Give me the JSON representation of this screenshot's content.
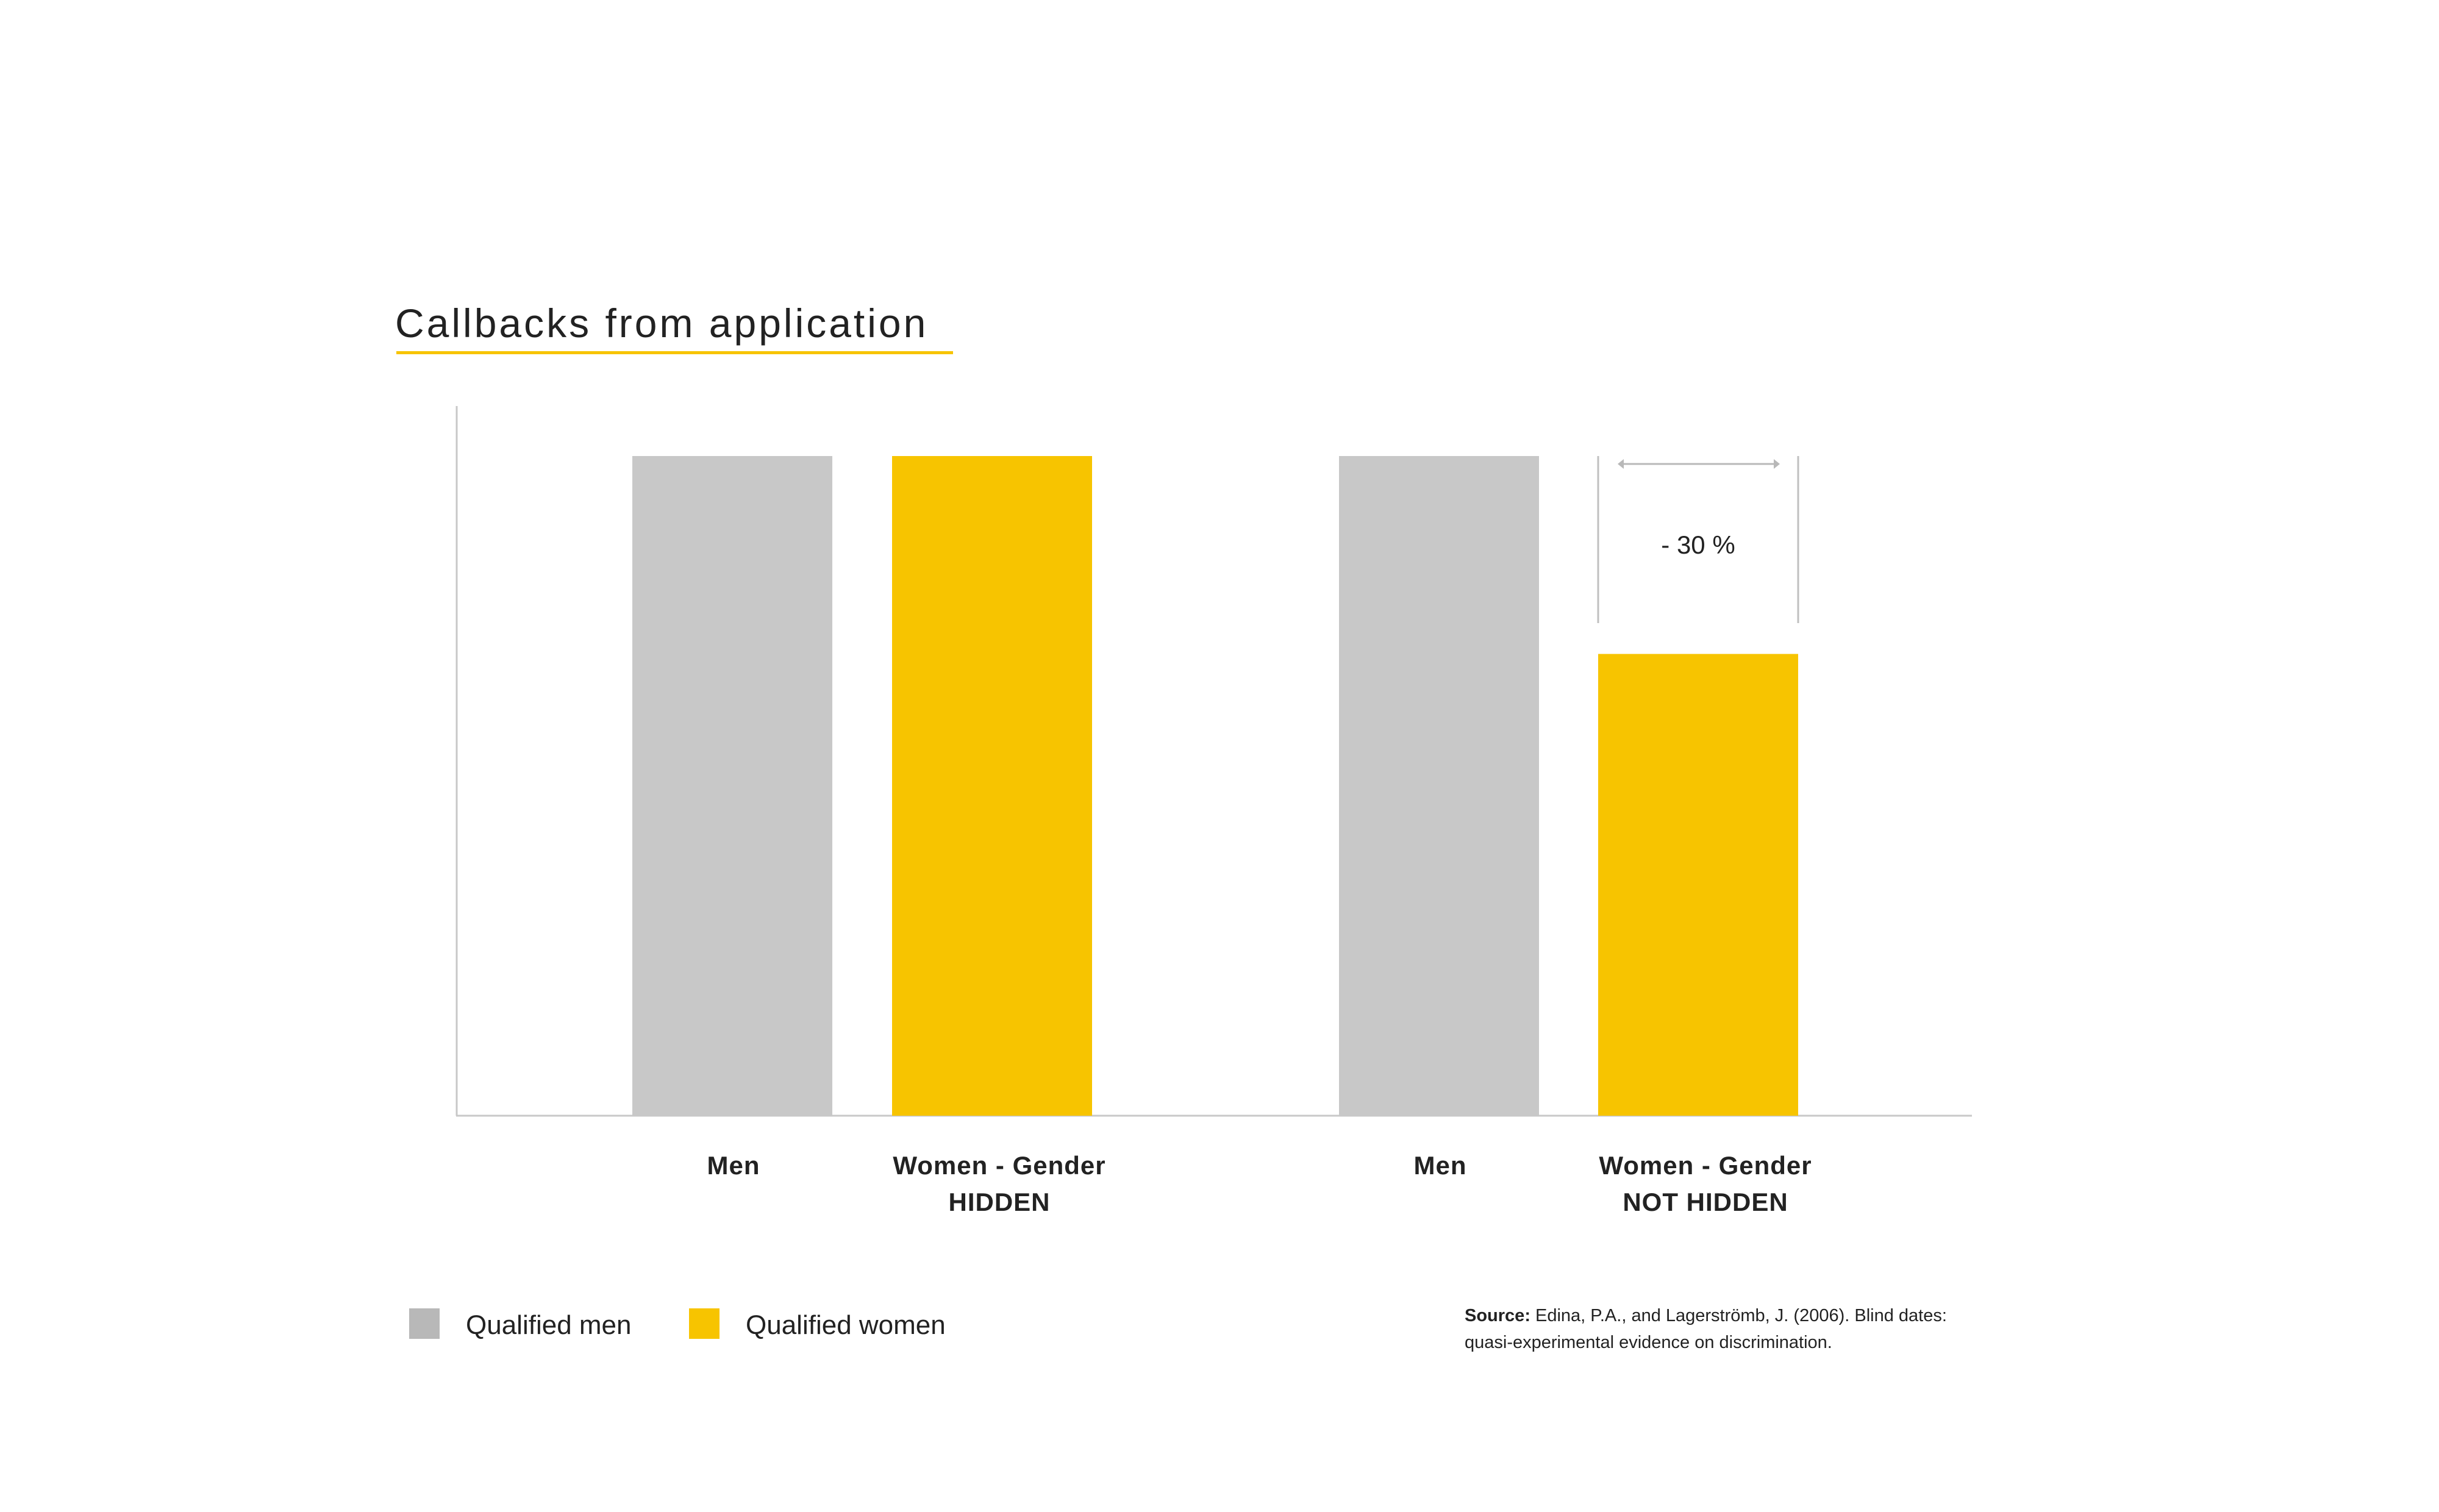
{
  "chart_data": {
    "type": "bar",
    "title": "Callbacks from application",
    "categories": [
      [
        "Men"
      ],
      [
        "Women - Gender",
        "HIDDEN"
      ],
      [
        "Men"
      ],
      [
        "Women - Gender",
        "NOT HIDDEN"
      ]
    ],
    "values": [
      100,
      100,
      100,
      70
    ],
    "bar_series": [
      "Qualified men",
      "Qualified women",
      "Qualified men",
      "Qualified women"
    ],
    "ylim": [
      0,
      100
    ],
    "xlabel": "",
    "ylabel": "",
    "grid": false,
    "annotation": {
      "text": "- 30 %",
      "bar_index": 3
    },
    "legend": {
      "placement": "bottom-left",
      "items": [
        {
          "label": "Qualified men",
          "color": "#b8b8b8"
        },
        {
          "label": "Qualified women",
          "color": "#f7c400"
        }
      ]
    },
    "source": {
      "label": "Source:",
      "line1": "Edina, P.A., and Lagerströmb, J. (2006). Blind dates:",
      "line2": "quasi-experimental evidence on discrimination."
    }
  },
  "colors": {
    "men": "#c8c8c8",
    "women": "#f7c400",
    "accent": "#f7c400",
    "axis": "#c8c8c8"
  }
}
